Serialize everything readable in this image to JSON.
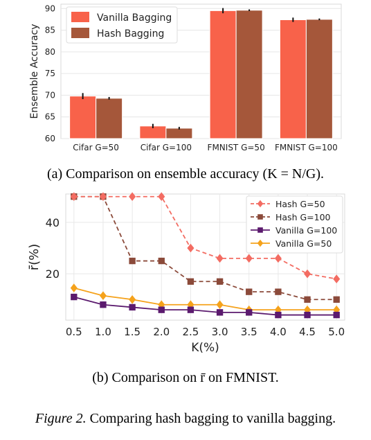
{
  "chart_data": [
    {
      "type": "bar",
      "caption": "(a) Comparison on ensemble accuracy (K = N/G).",
      "ylabel": "Ensemble Accuracy",
      "xlabel": "",
      "categories": [
        "Cifar G=50",
        "Cifar G=100",
        "FMNIST G=50",
        "FMNIST G=100"
      ],
      "ylim": [
        60,
        91
      ],
      "yticks": [
        60,
        65,
        70,
        75,
        80,
        85,
        90
      ],
      "grid": true,
      "legend_position": "top-left",
      "series": [
        {
          "name": "Vanilla Bagging",
          "color": "#f8624a",
          "values": [
            69.8,
            62.9,
            89.5,
            87.4
          ],
          "errors": [
            0.7,
            0.5,
            0.6,
            0.5
          ]
        },
        {
          "name": "Hash Bagging",
          "color": "#a5573a",
          "values": [
            69.3,
            62.4,
            89.6,
            87.5
          ],
          "errors": [
            0.3,
            0.3,
            0.2,
            0.2
          ]
        }
      ]
    },
    {
      "type": "line",
      "caption": "(b) Comparison on r̄ on FMNIST.",
      "ylabel": "r̄(%)",
      "xlabel": "K(%)",
      "x": [
        0.5,
        1.0,
        1.5,
        2.0,
        2.5,
        3.0,
        3.5,
        4.0,
        4.5,
        5.0
      ],
      "xtick_labels": [
        "0.5",
        "1.0",
        "1.5",
        "2.0",
        "2.5",
        "3.0",
        "3.5",
        "4.0",
        "4.5",
        "5.0"
      ],
      "ylim": [
        2,
        51
      ],
      "yticks": [
        20,
        40
      ],
      "grid": true,
      "legend_position": "top-right",
      "series": [
        {
          "name": "Hash G=50",
          "color": "#f36c62",
          "marker": "diamond",
          "dashed": true,
          "values": [
            50,
            50,
            50,
            50,
            30,
            26,
            26,
            26,
            20,
            18
          ]
        },
        {
          "name": "Hash G=100",
          "color": "#8b4a3a",
          "marker": "square",
          "dashed": true,
          "values": [
            50,
            50,
            25,
            25,
            17,
            17,
            13,
            13,
            10,
            10
          ]
        },
        {
          "name": "Vanilla G=100",
          "color": "#5b1a6e",
          "marker": "square",
          "dashed": false,
          "values": [
            11,
            8,
            7,
            6,
            6,
            5,
            5,
            4,
            4,
            4
          ]
        },
        {
          "name": "Vanilla G=50",
          "color": "#f5a21b",
          "marker": "diamond",
          "dashed": false,
          "values": [
            14.5,
            11.5,
            10,
            8,
            8,
            8,
            6,
            6,
            6,
            6
          ]
        }
      ]
    }
  ],
  "figure_caption": {
    "lead": "Figure 2.",
    "text": " Comparing hash bagging to vanilla bagging."
  }
}
